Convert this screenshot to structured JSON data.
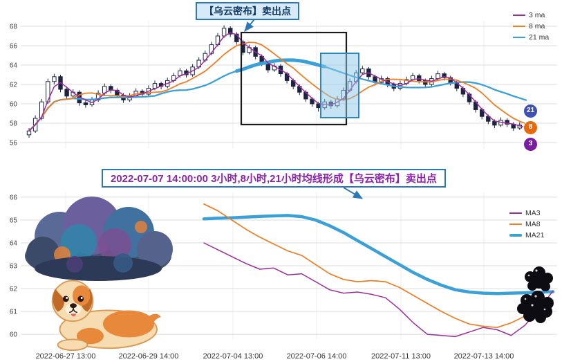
{
  "banner": {
    "text": "2022-07-07 14:00:00 3小时,8小时,21小时均线形成【乌云密布】卖出点"
  },
  "colors": {
    "ma3": "#9b2d9b",
    "ma8": "#ef7d22",
    "ma21": "#3aa0d8",
    "candle": "#1d2342",
    "grid_major": "#dcdcdc",
    "grid_minor": "#ececec",
    "badge3": "#7b1fa2",
    "badge8": "#e8690b",
    "badge21": "#3f51b5",
    "annotation_blue": "#2979b8",
    "banner_text": "#8e24aa",
    "pattern_box": "#1b1b1b",
    "zone_fill": "#8dc8e8",
    "zone_border": "#2e86c1",
    "tick_text": "#3c3c3c"
  },
  "chart_data": [
    {
      "type": "candlestick",
      "title": "",
      "annotation": "【乌云密布】卖出点",
      "yticks": [
        56,
        58,
        60,
        62,
        64,
        66,
        68
      ],
      "ylim": [
        55.4,
        68.6
      ],
      "legend": [
        {
          "label": "3 ma",
          "color": "#9b2d9b"
        },
        {
          "label": "8 ma",
          "color": "#ef7d22"
        },
        {
          "label": "21 ma",
          "color": "#3aa0d8"
        }
      ],
      "legend_position": "upper right",
      "badges": [
        "21",
        "8",
        "3"
      ],
      "ma_periods": [
        3,
        8,
        21
      ],
      "grid": true,
      "candles_ohlc": [
        [
          56.8,
          57.5,
          56.5,
          57.2
        ],
        [
          57.2,
          58.8,
          57.0,
          58.5
        ],
        [
          58.5,
          60.5,
          58.3,
          60.2
        ],
        [
          60.2,
          62.6,
          60.0,
          62.3
        ],
        [
          62.3,
          63.1,
          62.0,
          62.8
        ],
        [
          62.8,
          63.0,
          61.2,
          61.5
        ],
        [
          61.5,
          61.8,
          60.5,
          60.8
        ],
        [
          60.8,
          61.5,
          60.5,
          61.2
        ],
        [
          61.2,
          61.4,
          59.8,
          60.1
        ],
        [
          60.1,
          60.4,
          59.6,
          59.9
        ],
        [
          59.9,
          60.7,
          59.7,
          60.4
        ],
        [
          60.4,
          61.4,
          60.2,
          61.1
        ],
        [
          61.1,
          62.1,
          60.9,
          61.8
        ],
        [
          61.8,
          62.0,
          61.1,
          61.4
        ],
        [
          61.4,
          61.6,
          60.6,
          60.9
        ],
        [
          60.9,
          61.1,
          60.1,
          60.4
        ],
        [
          60.4,
          61.1,
          60.2,
          60.8
        ],
        [
          60.8,
          61.6,
          60.6,
          61.3
        ],
        [
          61.3,
          61.5,
          60.7,
          61.0
        ],
        [
          61.0,
          61.9,
          60.8,
          61.6
        ],
        [
          61.6,
          62.4,
          61.4,
          62.1
        ],
        [
          62.1,
          62.3,
          61.5,
          61.8
        ],
        [
          61.8,
          62.7,
          61.6,
          62.4
        ],
        [
          62.4,
          63.2,
          62.2,
          62.9
        ],
        [
          62.9,
          63.7,
          62.7,
          63.4
        ],
        [
          63.4,
          63.6,
          62.7,
          63.0
        ],
        [
          63.0,
          64.1,
          62.8,
          63.8
        ],
        [
          63.8,
          64.8,
          63.6,
          64.5
        ],
        [
          64.5,
          65.5,
          64.3,
          65.2
        ],
        [
          65.2,
          66.4,
          65.0,
          66.1
        ],
        [
          66.1,
          67.3,
          65.9,
          67.0
        ],
        [
          67.0,
          68.1,
          66.8,
          67.8
        ],
        [
          67.8,
          68.0,
          66.9,
          67.2
        ],
        [
          67.2,
          67.4,
          66.1,
          66.4
        ],
        [
          66.4,
          66.6,
          65.0,
          65.3
        ],
        [
          65.3,
          66.1,
          65.1,
          65.8
        ],
        [
          65.8,
          66.0,
          64.6,
          64.9
        ],
        [
          64.9,
          65.1,
          63.9,
          64.2
        ],
        [
          64.2,
          64.4,
          63.2,
          63.5
        ],
        [
          63.5,
          64.2,
          63.3,
          63.9
        ],
        [
          63.9,
          64.1,
          62.8,
          63.1
        ],
        [
          63.1,
          63.3,
          62.1,
          62.4
        ],
        [
          62.4,
          62.6,
          61.5,
          61.8
        ],
        [
          61.8,
          62.0,
          60.9,
          61.2
        ],
        [
          61.2,
          61.4,
          60.2,
          60.5
        ],
        [
          60.5,
          60.7,
          59.7,
          60.0
        ],
        [
          60.0,
          60.2,
          59.2,
          59.6
        ],
        [
          59.6,
          60.5,
          59.4,
          60.2
        ],
        [
          60.2,
          60.4,
          59.5,
          59.8
        ],
        [
          59.8,
          60.8,
          59.6,
          60.5
        ],
        [
          60.5,
          61.7,
          60.3,
          61.4
        ],
        [
          61.4,
          62.6,
          61.2,
          62.3
        ],
        [
          62.3,
          63.5,
          62.1,
          63.2
        ],
        [
          63.2,
          63.9,
          63.0,
          63.6
        ],
        [
          63.6,
          63.8,
          62.5,
          62.8
        ],
        [
          62.8,
          63.0,
          61.9,
          62.2
        ],
        [
          62.2,
          62.9,
          62.0,
          62.6
        ],
        [
          62.6,
          62.8,
          61.7,
          62.0
        ],
        [
          62.0,
          62.2,
          61.3,
          61.6
        ],
        [
          61.6,
          62.4,
          61.4,
          62.1
        ],
        [
          62.1,
          62.8,
          61.9,
          62.5
        ],
        [
          62.5,
          63.2,
          62.3,
          62.9
        ],
        [
          62.9,
          63.1,
          62.1,
          62.4
        ],
        [
          62.4,
          62.6,
          61.7,
          62.0
        ],
        [
          62.0,
          62.9,
          61.8,
          62.6
        ],
        [
          62.6,
          63.4,
          62.4,
          63.1
        ],
        [
          63.1,
          63.3,
          62.4,
          62.7
        ],
        [
          62.7,
          62.9,
          61.9,
          62.2
        ],
        [
          62.2,
          62.4,
          61.3,
          61.6
        ],
        [
          61.6,
          61.8,
          60.7,
          61.0
        ],
        [
          61.0,
          61.2,
          59.9,
          60.2
        ],
        [
          60.2,
          60.4,
          59.1,
          59.4
        ],
        [
          59.4,
          59.6,
          58.4,
          58.7
        ],
        [
          58.7,
          58.9,
          57.9,
          58.2
        ],
        [
          58.2,
          58.4,
          57.5,
          57.8
        ],
        [
          57.8,
          58.6,
          57.6,
          58.3
        ],
        [
          58.3,
          58.5,
          57.6,
          57.9
        ],
        [
          57.9,
          58.1,
          57.2,
          57.5
        ],
        [
          57.5,
          58.1,
          57.3,
          57.8
        ],
        [
          57.8,
          58.0,
          57.0,
          57.3
        ]
      ]
    },
    {
      "type": "line",
      "title": "",
      "yticks": [
        60,
        61,
        62,
        63,
        64,
        65,
        66
      ],
      "ylim": [
        59.8,
        66.2
      ],
      "grid": true,
      "legend_position": "upper right",
      "x_tick_labels": [
        "2022-06-27 13:00",
        "2022-06-29 14:00",
        "2022-07-04 13:00",
        "2022-07-06 14:00",
        "2022-07-11 13:00",
        "2022-07-13 14:00"
      ],
      "legend": [
        {
          "label": "MA3",
          "color": "#9b2d9b"
        },
        {
          "label": "MA8",
          "color": "#ef7d22"
        },
        {
          "label": "MA21",
          "color": "#3aa0d8"
        }
      ],
      "series": [
        {
          "name": "MA3",
          "values": [
            64.0,
            63.7,
            63.4,
            63.1,
            62.85,
            62.9,
            62.6,
            62.65,
            62.3,
            61.95,
            61.8,
            61.85,
            61.75,
            61.6,
            61.1,
            60.5,
            60.0,
            59.95,
            59.9,
            60.1,
            60.3,
            60.2,
            59.95,
            60.4,
            61.1,
            61.9
          ]
        },
        {
          "name": "MA8",
          "values": [
            65.7,
            65.4,
            65.0,
            64.6,
            64.25,
            63.95,
            63.65,
            63.45,
            63.05,
            62.65,
            62.4,
            62.3,
            62.35,
            62.3,
            62.05,
            61.7,
            61.35,
            61.0,
            60.7,
            60.45,
            60.35,
            60.3,
            60.5,
            60.8,
            61.15,
            61.5
          ]
        },
        {
          "name": "MA21",
          "values": [
            65.05,
            65.08,
            65.1,
            65.13,
            65.16,
            65.18,
            65.2,
            65.15,
            65.0,
            64.75,
            64.45,
            64.1,
            63.75,
            63.4,
            63.05,
            62.7,
            62.4,
            62.15,
            61.95,
            61.85,
            61.8,
            61.78,
            61.8,
            61.82,
            61.84,
            61.86
          ]
        }
      ]
    }
  ]
}
